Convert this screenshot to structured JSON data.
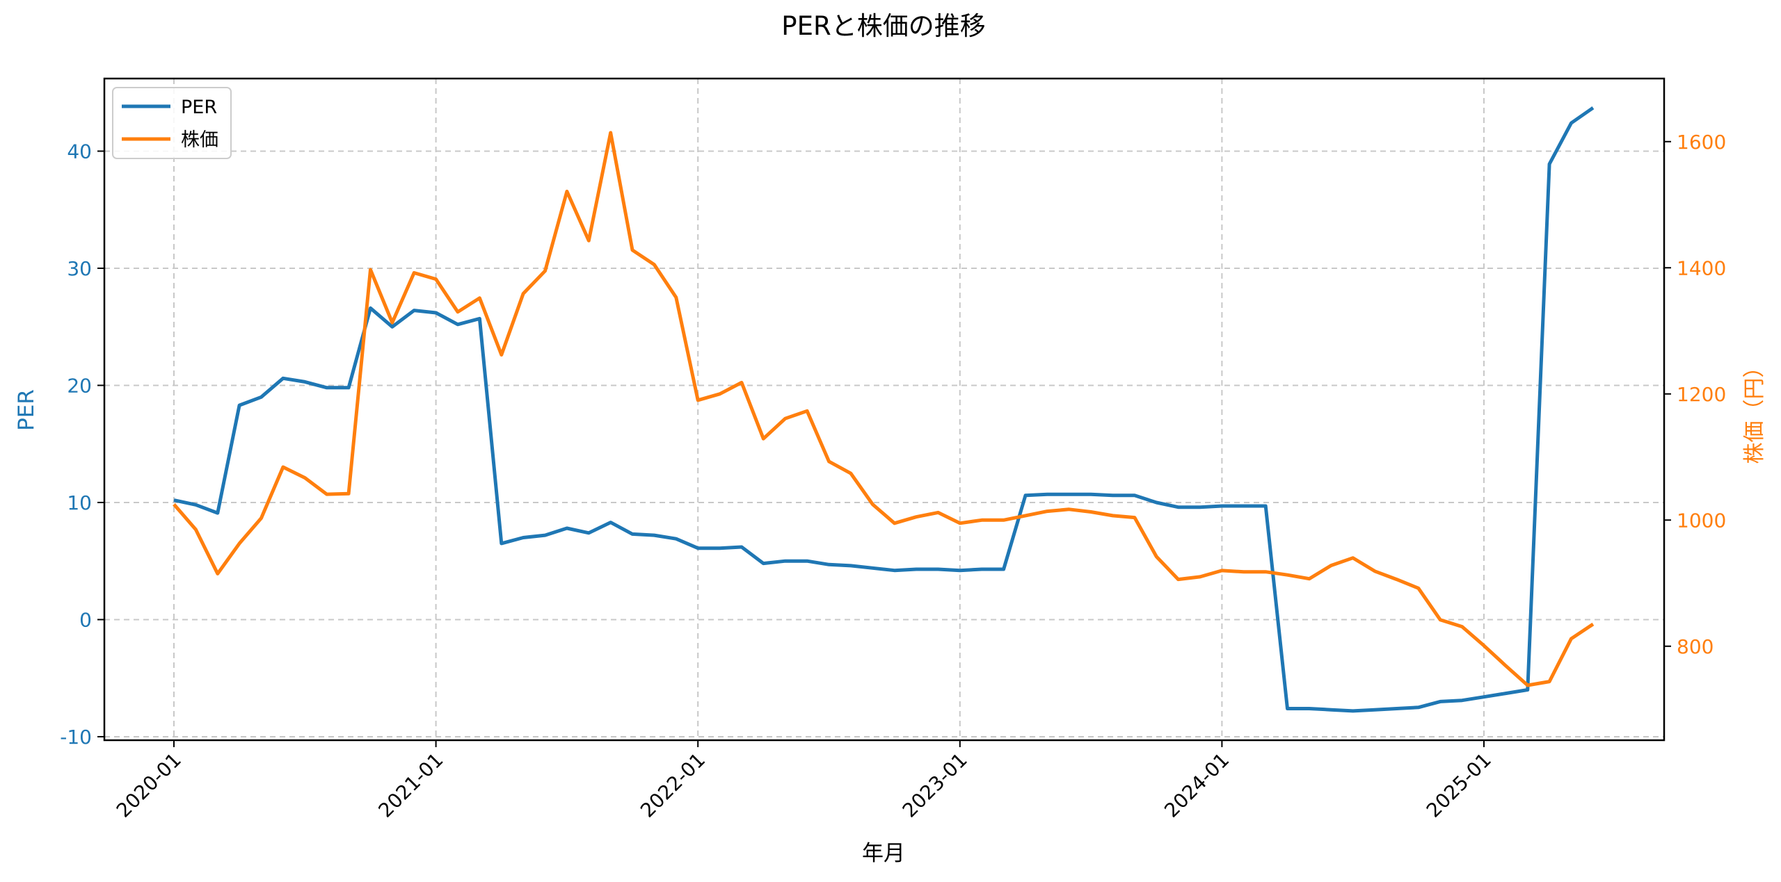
{
  "chart_data": {
    "type": "line",
    "title": "PERと株価の推移",
    "xlabel": "年月",
    "ylabel": "PER",
    "ylabel_right": "株価（円）",
    "ylim": [
      -10.3,
      46.2
    ],
    "ylim_right": [
      651,
      1700
    ],
    "yticks": [
      -10,
      0,
      10,
      20,
      30,
      40
    ],
    "yticks_right": [
      800,
      1000,
      1200,
      1400,
      1600
    ],
    "xticks": [
      "2020-01",
      "2021-01",
      "2022-01",
      "2023-01",
      "2024-01",
      "2025-01"
    ],
    "grid": true,
    "legend_position": "upper left",
    "x": [
      "2020-01",
      "2020-02",
      "2020-03",
      "2020-04",
      "2020-05",
      "2020-06",
      "2020-07",
      "2020-08",
      "2020-09",
      "2020-10",
      "2020-11",
      "2020-12",
      "2021-01",
      "2021-02",
      "2021-03",
      "2021-04",
      "2021-05",
      "2021-06",
      "2021-07",
      "2021-08",
      "2021-09",
      "2021-10",
      "2021-11",
      "2021-12",
      "2022-01",
      "2022-02",
      "2022-03",
      "2022-04",
      "2022-05",
      "2022-06",
      "2022-07",
      "2022-08",
      "2022-09",
      "2022-10",
      "2022-11",
      "2022-12",
      "2023-01",
      "2023-02",
      "2023-03",
      "2023-04",
      "2023-05",
      "2023-06",
      "2023-07",
      "2023-08",
      "2023-09",
      "2023-10",
      "2023-11",
      "2023-12",
      "2024-01",
      "2024-02",
      "2024-03",
      "2024-04",
      "2024-05",
      "2024-06",
      "2024-07",
      "2024-08",
      "2024-09",
      "2024-10",
      "2024-11",
      "2024-12",
      "2025-01",
      "2025-02",
      "2025-03",
      "2025-04",
      "2025-05",
      "2025-06"
    ],
    "series": [
      {
        "name": "PER",
        "axis": "left",
        "color": "#1f77b4",
        "values": [
          10.2,
          9.8,
          9.1,
          18.3,
          19.0,
          20.6,
          20.3,
          19.8,
          19.8,
          26.6,
          25.0,
          26.4,
          26.2,
          25.2,
          25.7,
          6.5,
          7.0,
          7.2,
          7.8,
          7.4,
          8.3,
          7.3,
          7.2,
          6.9,
          6.1,
          6.1,
          6.2,
          4.8,
          5.0,
          5.0,
          4.7,
          4.6,
          4.4,
          4.2,
          4.3,
          4.3,
          4.2,
          4.3,
          4.3,
          10.6,
          10.7,
          10.7,
          10.7,
          10.6,
          10.6,
          10.0,
          9.6,
          9.6,
          9.7,
          9.7,
          9.7,
          -7.6,
          -7.6,
          -7.7,
          -7.8,
          -7.7,
          -7.6,
          -7.5,
          -7.0,
          -6.9,
          -6.6,
          -6.3,
          -6.0,
          38.9,
          42.4,
          43.7
        ]
      },
      {
        "name": "株価",
        "axis": "right",
        "color": "#ff7f0e",
        "values": [
          1025,
          985,
          915,
          963,
          1003,
          1084,
          1067,
          1041,
          1042,
          1397,
          1313,
          1392,
          1382,
          1330,
          1352,
          1262,
          1359,
          1395,
          1521,
          1443,
          1614,
          1428,
          1405,
          1353,
          1190,
          1200,
          1218,
          1129,
          1161,
          1173,
          1093,
          1074,
          1025,
          995,
          1005,
          1012,
          995,
          1000,
          1000,
          1007,
          1014,
          1017,
          1013,
          1007,
          1004,
          942,
          906,
          910,
          920,
          918,
          918,
          913,
          907,
          928,
          940,
          919,
          906,
          892,
          842,
          831,
          801,
          769,
          738,
          744,
          812,
          835
        ]
      }
    ]
  },
  "colors": {
    "per": "#1f77b4",
    "price": "#ff7f0e",
    "grid": "#c8c8c8",
    "axis": "#000000"
  },
  "legend": {
    "items": [
      {
        "label": "PER"
      },
      {
        "label": "株価"
      }
    ]
  }
}
